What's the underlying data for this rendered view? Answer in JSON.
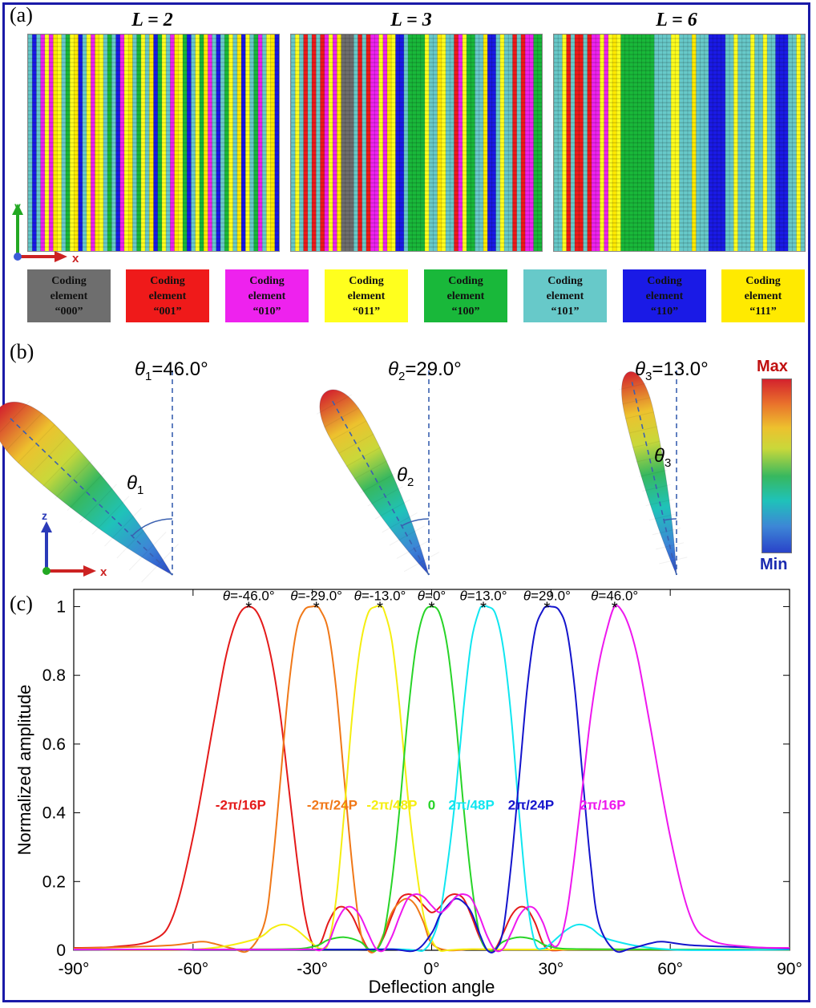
{
  "panel_a": {
    "label": "(a)",
    "headers": [
      "L = 2",
      "L = 3",
      "L = 6"
    ],
    "axis_x": "x",
    "axis_y": "y",
    "legend": [
      {
        "line1": "Coding",
        "line2": "element",
        "code": "“000”",
        "color": "#6e6e6e",
        "text_color": "#111111"
      },
      {
        "line1": "Coding",
        "line2": "element",
        "code": "“001”",
        "color": "#ef1a1a",
        "text_color": "#111111"
      },
      {
        "line1": "Coding",
        "line2": "element",
        "code": "“010”",
        "color": "#ee22ee",
        "text_color": "#111111"
      },
      {
        "line1": "Coding",
        "line2": "element",
        "code": "“011”",
        "color": "#ffff1e",
        "text_color": "#111111"
      },
      {
        "line1": "Coding",
        "line2": "element",
        "code": "“100”",
        "color": "#19b83a",
        "text_color": "#111111"
      },
      {
        "line1": "Coding",
        "line2": "element",
        "code": "“101”",
        "color": "#67c9c9",
        "text_color": "#111111"
      },
      {
        "line1": "Coding",
        "line2": "element",
        "code": "“110”",
        "color": "#1a1ae6",
        "text_color": "#111111"
      },
      {
        "line1": "Coding",
        "line2": "element",
        "code": "“111”",
        "color": "#ffea00",
        "text_color": "#111111"
      }
    ]
  },
  "panel_b": {
    "label": "(b)",
    "beams": [
      {
        "title_sym": "θ",
        "title_sub": "1",
        "title_val": "=46.0°",
        "angle_deg": 46.0,
        "inner_label": "θ",
        "inner_sub": "1"
      },
      {
        "title_sym": "θ",
        "title_sub": "2",
        "title_val": "=29.0°",
        "angle_deg": 29.0,
        "inner_label": "θ",
        "inner_sub": "2"
      },
      {
        "title_sym": "θ",
        "title_sub": "3",
        "title_val": "=13.0°",
        "angle_deg": 13.0,
        "inner_label": "θ",
        "inner_sub": "3"
      }
    ],
    "colorbar_max": "Max",
    "colorbar_min": "Min",
    "axis_z": "z",
    "axis_x": "x"
  },
  "panel_c": {
    "label": "(c)"
  },
  "chart_data": {
    "type": "line",
    "xlabel": "Deflection angle",
    "ylabel": "Normalized amplitude",
    "xlim": [
      -90,
      90
    ],
    "ylim": [
      0,
      1.05
    ],
    "xticks": [
      -90,
      -60,
      -30,
      0,
      30,
      60,
      90
    ],
    "xtick_labels": [
      "-90°",
      "-60°",
      "-30°",
      "0°",
      "30°",
      "60°",
      "90°"
    ],
    "yticks": [
      0,
      0.2,
      0.4,
      0.6,
      0.8,
      1
    ],
    "ytick_labels": [
      "0",
      "0.2",
      "0.4",
      "0.6",
      "0.8",
      "1"
    ],
    "grid": false,
    "series": [
      {
        "name": "-2π/16P",
        "color": "#e41a1a",
        "peak": -46.0,
        "peak_label": "θ=-46.0°",
        "x": [
          -90,
          -80,
          -70,
          -65,
          -60,
          -55,
          -52,
          -50,
          -48,
          -46,
          -44,
          -42,
          -40,
          -38,
          -36,
          -34,
          -32,
          -30,
          -28,
          -26,
          -24,
          -22,
          -20,
          -18,
          -16,
          -14,
          -12,
          -10,
          -8,
          -6,
          -4,
          -2,
          0,
          2,
          4,
          6,
          8,
          10,
          12,
          14,
          16,
          18,
          20,
          22,
          24,
          26,
          28,
          30,
          35,
          40,
          50,
          60,
          70,
          80,
          90
        ],
        "y": [
          0.007,
          0.01,
          0.03,
          0.1,
          0.33,
          0.65,
          0.84,
          0.93,
          0.985,
          1.0,
          0.985,
          0.93,
          0.83,
          0.68,
          0.48,
          0.28,
          0.11,
          0.02,
          0.02,
          0.08,
          0.12,
          0.125,
          0.1,
          0.05,
          0.005,
          0.0,
          0.04,
          0.1,
          0.15,
          0.163,
          0.155,
          0.13,
          0.11,
          0.125,
          0.155,
          0.163,
          0.15,
          0.1,
          0.04,
          0.0,
          0.005,
          0.05,
          0.1,
          0.125,
          0.12,
          0.08,
          0.02,
          0.0,
          0.003,
          0.003,
          0.002,
          0.002,
          0.002,
          0.002,
          0.002
        ]
      },
      {
        "name": "-2π/24P",
        "color": "#f07818",
        "peak": -29.0,
        "peak_label": "θ=-29.0°",
        "x": [
          -90,
          -75,
          -65,
          -58,
          -55,
          -50,
          -46,
          -42,
          -40,
          -38,
          -36,
          -34,
          -32,
          -30,
          -29,
          -28,
          -26,
          -24,
          -22,
          -20,
          -18,
          -16,
          -14,
          -12,
          -10,
          -8,
          -6,
          -4,
          -2,
          0,
          4,
          10,
          20,
          40,
          60,
          90
        ],
        "y": [
          0.005,
          0.01,
          0.015,
          0.025,
          0.02,
          0.005,
          0.0,
          0.08,
          0.25,
          0.5,
          0.76,
          0.93,
          0.99,
          1.0,
          1.0,
          0.99,
          0.93,
          0.76,
          0.5,
          0.25,
          0.06,
          0.0,
          0.0,
          0.05,
          0.11,
          0.14,
          0.15,
          0.13,
          0.08,
          0.02,
          0.0,
          0.003,
          0.002,
          0.002,
          0.002,
          0.002
        ]
      },
      {
        "name": "-2π/48P",
        "color": "#f5ee10",
        "peak": -13.0,
        "peak_label": "θ=-13.0°",
        "x": [
          -90,
          -60,
          -45,
          -40,
          -37,
          -34,
          -30,
          -28,
          -26,
          -24,
          -22,
          -20,
          -18,
          -16,
          -14,
          -13,
          -12,
          -10,
          -8,
          -6,
          -4,
          -2,
          0,
          2,
          4,
          8,
          15,
          20,
          40,
          90
        ],
        "y": [
          0.002,
          0.002,
          0.03,
          0.065,
          0.075,
          0.06,
          0.02,
          0.005,
          0.02,
          0.15,
          0.4,
          0.68,
          0.88,
          0.98,
          1.0,
          1.0,
          0.99,
          0.9,
          0.7,
          0.45,
          0.25,
          0.1,
          0.03,
          0.0,
          0.0,
          0.003,
          0.003,
          0.002,
          0.002,
          0.002
        ]
      },
      {
        "name": "0",
        "color": "#28d428",
        "peak": 0.0,
        "peak_label": "θ=0°",
        "x": [
          -90,
          -40,
          -30,
          -26,
          -22,
          -18,
          -16,
          -14,
          -12,
          -10,
          -8,
          -6,
          -4,
          -2,
          0,
          2,
          4,
          6,
          8,
          10,
          12,
          14,
          16,
          18,
          22,
          26,
          30,
          40,
          90
        ],
        "y": [
          0.002,
          0.003,
          0.01,
          0.03,
          0.038,
          0.025,
          0.005,
          0.0,
          0.05,
          0.2,
          0.42,
          0.68,
          0.88,
          0.98,
          1.0,
          0.98,
          0.88,
          0.68,
          0.42,
          0.2,
          0.05,
          0.0,
          0.005,
          0.025,
          0.038,
          0.03,
          0.01,
          0.003,
          0.002
        ]
      },
      {
        "name": "2π/48P",
        "color": "#10e6f0",
        "peak": 13.0,
        "peak_label": "θ=13.0°",
        "x": [
          -90,
          -40,
          -20,
          -15,
          -8,
          -4,
          -2,
          0,
          2,
          4,
          6,
          8,
          10,
          12,
          13,
          14,
          16,
          18,
          20,
          22,
          24,
          26,
          28,
          30,
          34,
          37,
          40,
          45,
          60,
          90
        ],
        "y": [
          0.002,
          0.002,
          0.002,
          0.003,
          0.003,
          0.0,
          0.0,
          0.03,
          0.1,
          0.25,
          0.45,
          0.7,
          0.9,
          0.99,
          1.0,
          1.0,
          0.98,
          0.88,
          0.68,
          0.4,
          0.15,
          0.02,
          0.005,
          0.02,
          0.06,
          0.075,
          0.065,
          0.03,
          0.002,
          0.002
        ]
      },
      {
        "name": "2π/24P",
        "color": "#1414cc",
        "peak": 29.0,
        "peak_label": "θ=29.0°",
        "x": [
          -90,
          -60,
          -40,
          -20,
          -10,
          -4,
          0,
          2,
          4,
          6,
          8,
          10,
          12,
          14,
          16,
          18,
          20,
          22,
          24,
          26,
          28,
          29,
          30,
          32,
          34,
          36,
          38,
          40,
          42,
          46,
          50,
          55,
          58,
          65,
          75,
          90
        ],
        "y": [
          0.002,
          0.002,
          0.002,
          0.002,
          0.003,
          0.0,
          0.05,
          0.1,
          0.13,
          0.15,
          0.14,
          0.11,
          0.05,
          0.0,
          0.0,
          0.06,
          0.25,
          0.5,
          0.76,
          0.93,
          0.99,
          1.0,
          1.0,
          0.99,
          0.93,
          0.76,
          0.5,
          0.25,
          0.08,
          0.0,
          0.005,
          0.02,
          0.025,
          0.015,
          0.01,
          0.005
        ]
      },
      {
        "name": "2π/16P",
        "color": "#ee18ee",
        "peak": 46.0,
        "peak_label": "θ=46.0°",
        "x": [
          -90,
          -70,
          -50,
          -40,
          -35,
          -30,
          -28,
          -26,
          -24,
          -22,
          -20,
          -18,
          -16,
          -14,
          -12,
          -10,
          -8,
          -6,
          -4,
          -2,
          0,
          2,
          4,
          6,
          8,
          10,
          12,
          14,
          16,
          18,
          20,
          22,
          24,
          26,
          28,
          30,
          32,
          34,
          36,
          38,
          40,
          42,
          44,
          46,
          48,
          50,
          52,
          55,
          60,
          65,
          70,
          80,
          90
        ],
        "y": [
          0.002,
          0.002,
          0.002,
          0.002,
          0.002,
          0.003,
          0.0,
          0.02,
          0.08,
          0.12,
          0.125,
          0.1,
          0.05,
          0.005,
          0.0,
          0.04,
          0.1,
          0.15,
          0.163,
          0.155,
          0.13,
          0.11,
          0.125,
          0.155,
          0.163,
          0.15,
          0.1,
          0.04,
          0.0,
          0.005,
          0.05,
          0.1,
          0.125,
          0.12,
          0.08,
          0.02,
          0.02,
          0.11,
          0.28,
          0.48,
          0.68,
          0.83,
          0.93,
          1.0,
          0.985,
          0.93,
          0.84,
          0.65,
          0.33,
          0.1,
          0.03,
          0.01,
          0.007
        ]
      }
    ],
    "curve_labels": [
      {
        "text": "-2π/16P",
        "color": "#e41a1a",
        "x": -48.0,
        "y": 0.41
      },
      {
        "text": "-2π/24P",
        "color": "#f07818",
        "x": -25.0,
        "y": 0.41
      },
      {
        "text": "-2π/48P",
        "color": "#f5ee10",
        "x": -10.0,
        "y": 0.41
      },
      {
        "text": "0",
        "color": "#28d428",
        "x": 0.0,
        "y": 0.41
      },
      {
        "text": "2π/48P",
        "color": "#10e6f0",
        "x": 10.0,
        "y": 0.41
      },
      {
        "text": "2π/24P",
        "color": "#1414cc",
        "x": 25.0,
        "y": 0.41
      },
      {
        "text": "2π/16P",
        "color": "#ee18ee",
        "x": 43.0,
        "y": 0.41
      }
    ]
  }
}
